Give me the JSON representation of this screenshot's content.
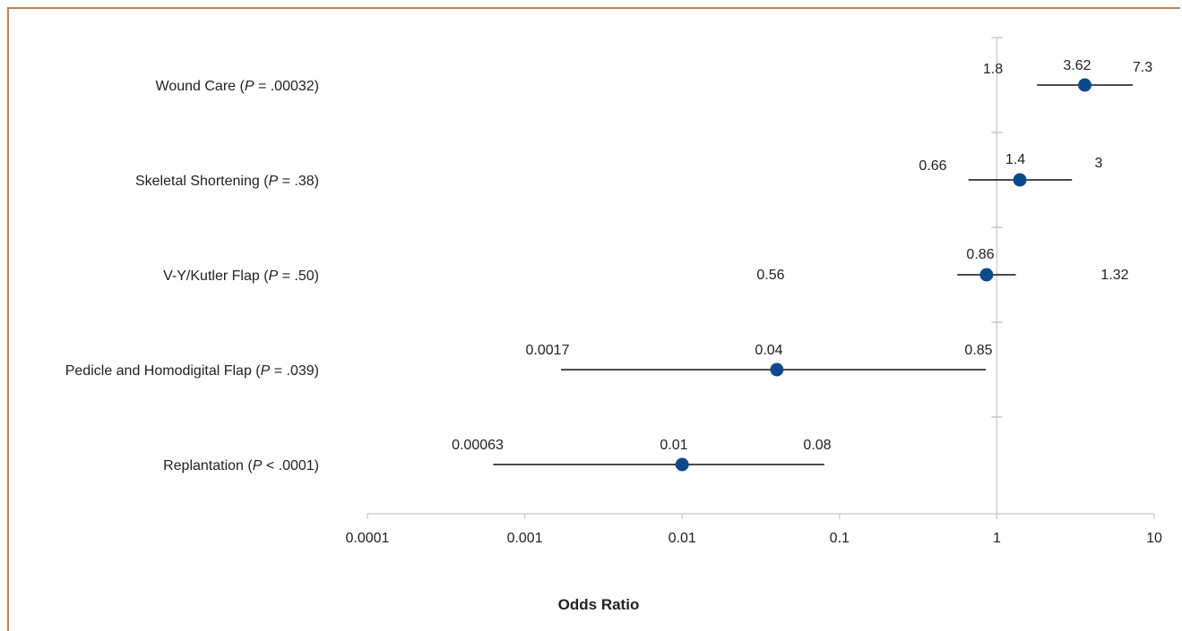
{
  "chart_data": {
    "type": "forest",
    "xscale": "log",
    "xlim": [
      0.0001,
      10
    ],
    "xlabel": "Odds Ratio",
    "x_ticks": [
      "0.0001",
      "0.001",
      "0.01",
      "0.1",
      "1",
      "10"
    ],
    "rows": [
      {
        "label": "Wound Care (",
        "italic": "P",
        "rest": " = .00032)",
        "or": 3.62,
        "lower": 1.8,
        "upper": 7.3,
        "or_text": "3.62",
        "lower_text": "1.8",
        "upper_text": "7.3"
      },
      {
        "label": "Skeletal Shortening (",
        "italic": "P",
        "rest": " = .38)",
        "or": 1.4,
        "lower": 0.66,
        "upper": 3,
        "or_text": "1.4",
        "lower_text": "0.66",
        "upper_text": "3"
      },
      {
        "label": "V-Y/Kutler Flap (",
        "italic": "P",
        "rest": " = .50)",
        "or": 0.86,
        "lower": 0.56,
        "upper": 1.32,
        "or_text": "0.86",
        "lower_text": "0.56",
        "upper_text": "1.32"
      },
      {
        "label": "Pedicle and Homodigital Flap (",
        "italic": "P",
        "rest": " = .039)",
        "or": 0.04,
        "lower": 0.0017,
        "upper": 0.85,
        "or_text": "0.04",
        "lower_text": "0.0017",
        "upper_text": "0.85"
      },
      {
        "label": "Replantation (",
        "italic": "P",
        "rest": " < .0001)",
        "or": 0.01,
        "lower": 0.00063,
        "upper": 0.08,
        "or_text": "0.01",
        "lower_text": "0.00063",
        "upper_text": "0.08"
      }
    ],
    "colors": {
      "point": "#0d4a8c",
      "line": "#111111",
      "ref_line": "#c8c8c8",
      "frame": "#b5875a"
    }
  }
}
